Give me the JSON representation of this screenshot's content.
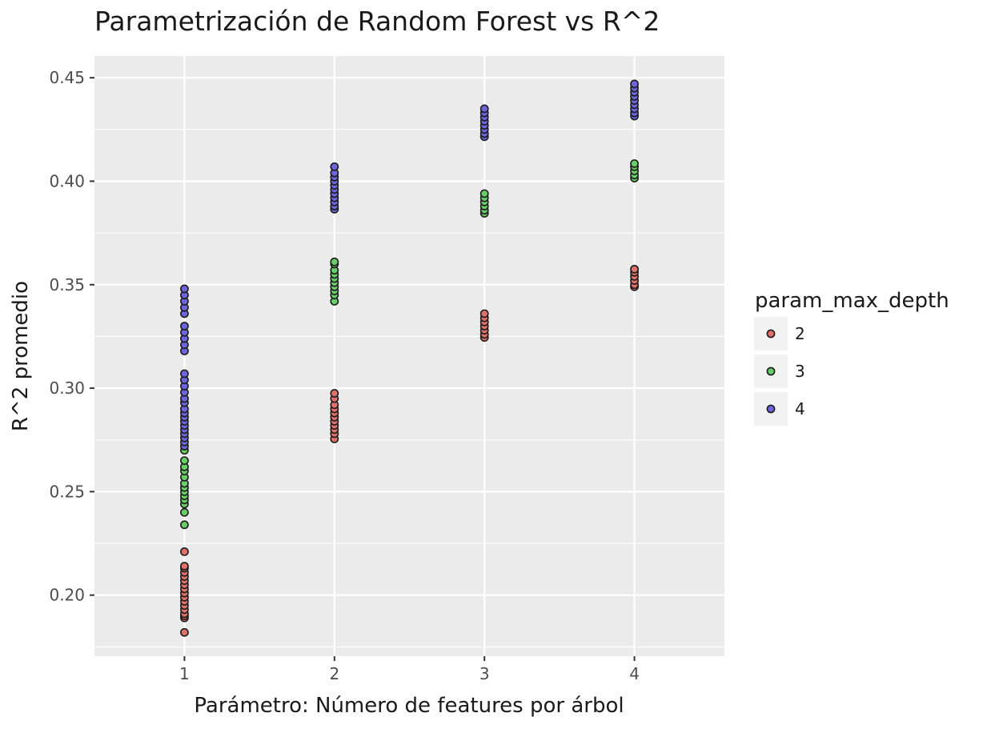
{
  "chart_data": {
    "type": "scatter",
    "title": "Parametrización de Random Forest vs R^2",
    "xlabel": "Parámetro: Número de features por árbol",
    "ylabel": "R^2 promedio",
    "xlim": [
      0.4,
      4.6
    ],
    "ylim": [
      0.1705,
      0.4605
    ],
    "x_ticks": [
      1,
      2,
      3,
      4
    ],
    "x_tick_labels": [
      "1",
      "2",
      "3",
      "4"
    ],
    "y_ticks": [
      0.2,
      0.25,
      0.3,
      0.35,
      0.4,
      0.45
    ],
    "y_tick_labels": [
      "0.20",
      "0.25",
      "0.30",
      "0.35",
      "0.40",
      "0.45"
    ],
    "y_minor_ticks": [
      0.175,
      0.225,
      0.275,
      0.325,
      0.375,
      0.425
    ],
    "grid": true,
    "legend": {
      "title": "param_max_depth",
      "placement": "right"
    },
    "series": [
      {
        "name": "2",
        "color": "#F8766D",
        "points": [
          [
            1,
            0.182
          ],
          [
            1,
            0.189
          ],
          [
            1,
            0.19
          ],
          [
            1,
            0.191
          ],
          [
            1,
            0.193
          ],
          [
            1,
            0.195
          ],
          [
            1,
            0.197
          ],
          [
            1,
            0.199
          ],
          [
            1,
            0.201
          ],
          [
            1,
            0.203
          ],
          [
            1,
            0.205
          ],
          [
            1,
            0.207
          ],
          [
            1,
            0.209
          ],
          [
            1,
            0.211
          ],
          [
            1,
            0.213
          ],
          [
            1,
            0.214
          ],
          [
            1,
            0.221
          ],
          [
            2,
            0.2755
          ],
          [
            2,
            0.278
          ],
          [
            2,
            0.28
          ],
          [
            2,
            0.282
          ],
          [
            2,
            0.284
          ],
          [
            2,
            0.286
          ],
          [
            2,
            0.288
          ],
          [
            2,
            0.29
          ],
          [
            2,
            0.292
          ],
          [
            2,
            0.295
          ],
          [
            2,
            0.2975
          ],
          [
            3,
            0.3245
          ],
          [
            3,
            0.326
          ],
          [
            3,
            0.328
          ],
          [
            3,
            0.33
          ],
          [
            3,
            0.332
          ],
          [
            3,
            0.334
          ],
          [
            3,
            0.336
          ],
          [
            4,
            0.349
          ],
          [
            4,
            0.35
          ],
          [
            4,
            0.352
          ],
          [
            4,
            0.354
          ],
          [
            4,
            0.356
          ],
          [
            4,
            0.3575
          ]
        ]
      },
      {
        "name": "3",
        "color": "#00BA38",
        "points": [
          [
            1,
            0.234
          ],
          [
            1,
            0.24
          ],
          [
            1,
            0.244
          ],
          [
            1,
            0.246
          ],
          [
            1,
            0.248
          ],
          [
            1,
            0.25
          ],
          [
            1,
            0.252
          ],
          [
            1,
            0.254
          ],
          [
            1,
            0.257
          ],
          [
            1,
            0.26
          ],
          [
            1,
            0.262
          ],
          [
            1,
            0.265
          ],
          [
            1,
            0.27
          ],
          [
            2,
            0.342
          ],
          [
            2,
            0.345
          ],
          [
            2,
            0.347
          ],
          [
            2,
            0.349
          ],
          [
            2,
            0.351
          ],
          [
            2,
            0.353
          ],
          [
            2,
            0.355
          ],
          [
            2,
            0.357
          ],
          [
            2,
            0.36
          ],
          [
            2,
            0.361
          ],
          [
            3,
            0.3845
          ],
          [
            3,
            0.386
          ],
          [
            3,
            0.388
          ],
          [
            3,
            0.39
          ],
          [
            3,
            0.392
          ],
          [
            3,
            0.394
          ],
          [
            4,
            0.4015
          ],
          [
            4,
            0.403
          ],
          [
            4,
            0.405
          ],
          [
            4,
            0.407
          ],
          [
            4,
            0.4085
          ]
        ]
      },
      {
        "name": "4",
        "color": "#619CFF",
        "points": [
          [
            1,
            0.272
          ],
          [
            1,
            0.274
          ],
          [
            1,
            0.276
          ],
          [
            1,
            0.278
          ],
          [
            1,
            0.28
          ],
          [
            1,
            0.282
          ],
          [
            1,
            0.284
          ],
          [
            1,
            0.286
          ],
          [
            1,
            0.288
          ],
          [
            1,
            0.29
          ],
          [
            1,
            0.293
          ],
          [
            1,
            0.295
          ],
          [
            1,
            0.298
          ],
          [
            1,
            0.301
          ],
          [
            1,
            0.304
          ],
          [
            1,
            0.307
          ],
          [
            1,
            0.318
          ],
          [
            1,
            0.321
          ],
          [
            1,
            0.324
          ],
          [
            1,
            0.327
          ],
          [
            1,
            0.33
          ],
          [
            1,
            0.336
          ],
          [
            1,
            0.339
          ],
          [
            1,
            0.342
          ],
          [
            1,
            0.345
          ],
          [
            1,
            0.348
          ],
          [
            2,
            0.3865
          ],
          [
            2,
            0.388
          ],
          [
            2,
            0.39
          ],
          [
            2,
            0.392
          ],
          [
            2,
            0.394
          ],
          [
            2,
            0.396
          ],
          [
            2,
            0.398
          ],
          [
            2,
            0.4
          ],
          [
            2,
            0.402
          ],
          [
            2,
            0.404
          ],
          [
            2,
            0.407
          ],
          [
            3,
            0.4215
          ],
          [
            3,
            0.423
          ],
          [
            3,
            0.425
          ],
          [
            3,
            0.427
          ],
          [
            3,
            0.429
          ],
          [
            3,
            0.431
          ],
          [
            3,
            0.433
          ],
          [
            3,
            0.435
          ],
          [
            4,
            0.4315
          ],
          [
            4,
            0.433
          ],
          [
            4,
            0.435
          ],
          [
            4,
            0.437
          ],
          [
            4,
            0.439
          ],
          [
            4,
            0.441
          ],
          [
            4,
            0.443
          ],
          [
            4,
            0.445
          ],
          [
            4,
            0.447
          ]
        ]
      }
    ],
    "display_colors": {
      "2": "#E0716A",
      "3": "#67CE67",
      "4": "#6E64DD"
    },
    "panel_color": "#EBEBEB",
    "grid_color": "#FFFFFF",
    "point_stroke": "#1A1A1A"
  }
}
